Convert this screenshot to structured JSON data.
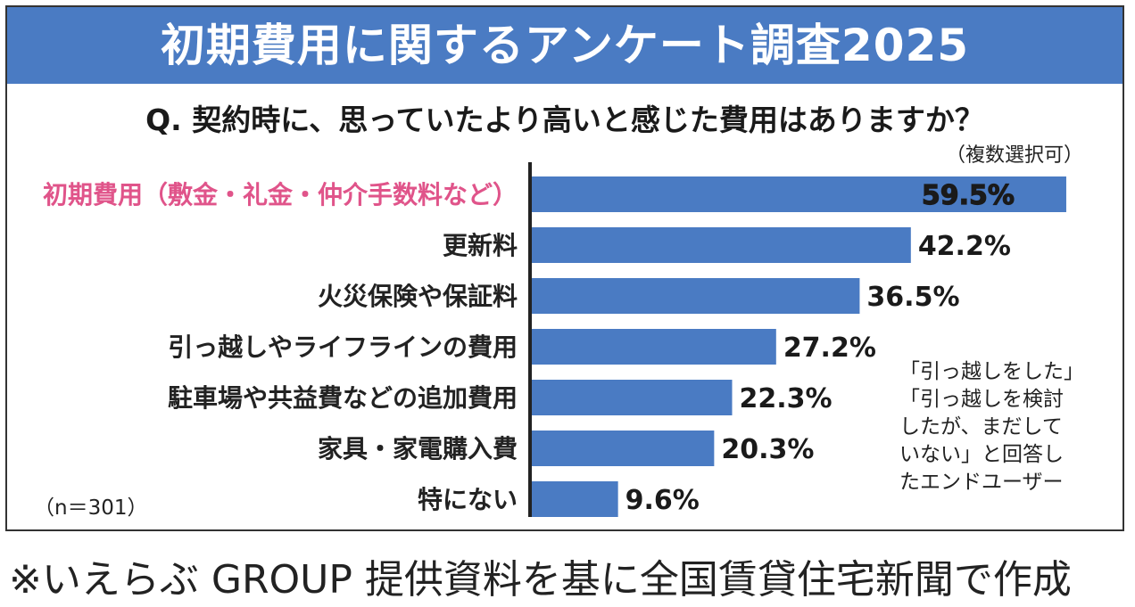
{
  "chart_data": {
    "type": "bar",
    "orientation": "horizontal",
    "title": "初期費用に関するアンケート調査2025",
    "question": "Q. 契約時に、思っていたより高いと感じた費用はありますか？",
    "note": "（複数選択可）",
    "sample": "（n＝301）",
    "categories": [
      "初期費用（敷金・礼金・仲介手数料など）",
      "更新料",
      "火災保険や保証料",
      "引っ越しやライフラインの費用",
      "駐車場や共益費などの追加費用",
      "家具・家電購入費",
      "特にない"
    ],
    "values": [
      59.5,
      42.2,
      36.5,
      27.2,
      22.3,
      20.3,
      9.6
    ],
    "value_labels": [
      "59.5%",
      "42.2%",
      "36.5%",
      "27.2%",
      "22.3%",
      "20.3%",
      "9.6%"
    ],
    "highlight_index": 0,
    "xlim": [
      0,
      60
    ],
    "side_note": [
      "「引っ越しをした」",
      "「引っ越しを検討",
      "したが、まだして",
      "いない」と回答し",
      "たエンドユーザー"
    ],
    "colors": {
      "bar": "#4a7bc3",
      "highlight_label": "#e0548a",
      "title_bg": "#4a7bc3"
    }
  },
  "footer": "※いえらぶ GROUP 提供資料を基に全国賃貸住宅新聞で作成"
}
